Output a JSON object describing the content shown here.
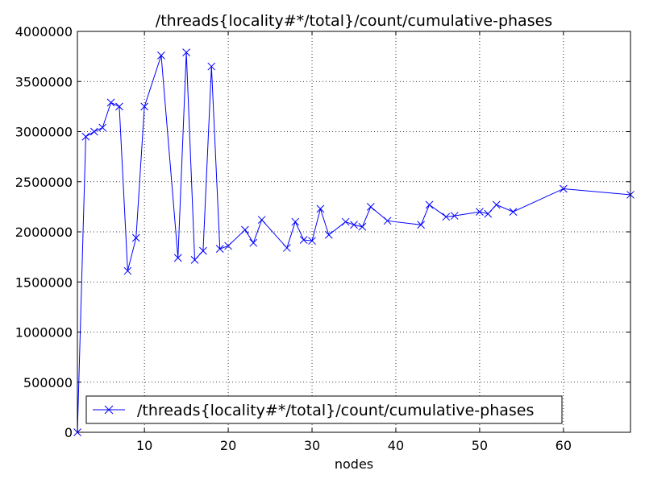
{
  "chart_data": {
    "type": "line",
    "title": "/threads{locality#*/total}/count/cumulative-phases",
    "xlabel": "nodes",
    "ylabel": "",
    "xlim": [
      2,
      68
    ],
    "ylim": [
      0,
      4000000
    ],
    "xticks": [
      10,
      20,
      30,
      40,
      50,
      60
    ],
    "yticks": [
      0,
      500000,
      1000000,
      1500000,
      2000000,
      2500000,
      3000000,
      3500000,
      4000000
    ],
    "grid": true,
    "legend_position": "lower-left",
    "series": [
      {
        "name": "/threads{locality#*/total}/count/cumulative-phases",
        "color": "#0000ff",
        "marker": "x",
        "x": [
          2,
          3,
          4,
          5,
          6,
          7,
          8,
          9,
          10,
          12,
          14,
          15,
          16,
          17,
          18,
          19,
          20,
          22,
          23,
          24,
          27,
          28,
          29,
          30,
          31,
          32,
          34,
          35,
          36,
          37,
          39,
          43,
          44,
          46,
          47,
          50,
          51,
          52,
          54,
          60,
          68
        ],
        "y": [
          0,
          2950000,
          3000000,
          3040000,
          3290000,
          3250000,
          1610000,
          1940000,
          3250000,
          3760000,
          1740000,
          3790000,
          1720000,
          1810000,
          3650000,
          1830000,
          1860000,
          2020000,
          1890000,
          2120000,
          1840000,
          2100000,
          1920000,
          1910000,
          2230000,
          1970000,
          2100000,
          2070000,
          2050000,
          2250000,
          2110000,
          2070000,
          2270000,
          2150000,
          2160000,
          2200000,
          2180000,
          2270000,
          2200000,
          2430000,
          2370000
        ]
      }
    ]
  }
}
